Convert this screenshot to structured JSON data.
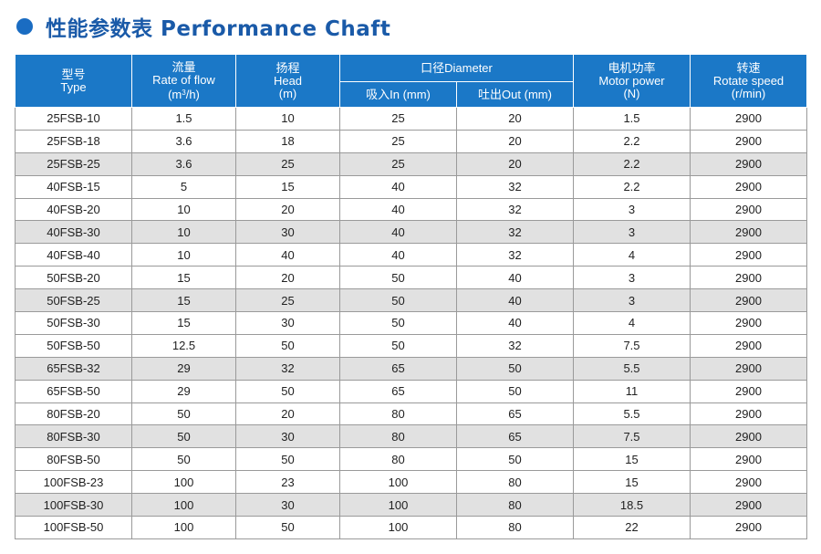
{
  "header": {
    "title": "性能参数表 Performance Chaft",
    "bullet_color": "#1a6cc2",
    "title_color": "#1a5aa8"
  },
  "table": {
    "header_color": "#1b78c7",
    "shade_color": "#e1e1e1",
    "columns": {
      "type": {
        "cn": "型号",
        "en": "Type"
      },
      "flow": {
        "cn": "流量",
        "en": "Rate of flow",
        "unit_pre": "(m",
        "unit_sup": "3",
        "unit_post": "/h)"
      },
      "head": {
        "cn": "扬程",
        "en": "Head",
        "unit": "(m)"
      },
      "diameter": {
        "label": "口径Diameter",
        "in": "吸入In (mm)",
        "out": "吐出Out (mm)"
      },
      "power": {
        "cn": "电机功率",
        "en": "Motor power",
        "unit": "(N)"
      },
      "speed": {
        "cn": "转速",
        "en": "Rotate speed",
        "unit": "(r/min)"
      }
    },
    "rows": [
      [
        "25FSB-10",
        "1.5",
        "10",
        "25",
        "20",
        "1.5",
        "2900"
      ],
      [
        "25FSB-18",
        "3.6",
        "18",
        "25",
        "20",
        "2.2",
        "2900"
      ],
      [
        "25FSB-25",
        "3.6",
        "25",
        "25",
        "20",
        "2.2",
        "2900"
      ],
      [
        "40FSB-15",
        "5",
        "15",
        "40",
        "32",
        "2.2",
        "2900"
      ],
      [
        "40FSB-20",
        "10",
        "20",
        "40",
        "32",
        "3",
        "2900"
      ],
      [
        "40FSB-30",
        "10",
        "30",
        "40",
        "32",
        "3",
        "2900"
      ],
      [
        "40FSB-40",
        "10",
        "40",
        "40",
        "32",
        "4",
        "2900"
      ],
      [
        "50FSB-20",
        "15",
        "20",
        "50",
        "40",
        "3",
        "2900"
      ],
      [
        "50FSB-25",
        "15",
        "25",
        "50",
        "40",
        "3",
        "2900"
      ],
      [
        "50FSB-30",
        "15",
        "30",
        "50",
        "40",
        "4",
        "2900"
      ],
      [
        "50FSB-50",
        "12.5",
        "50",
        "50",
        "32",
        "7.5",
        "2900"
      ],
      [
        "65FSB-32",
        "29",
        "32",
        "65",
        "50",
        "5.5",
        "2900"
      ],
      [
        "65FSB-50",
        "29",
        "50",
        "65",
        "50",
        "11",
        "2900"
      ],
      [
        "80FSB-20",
        "50",
        "20",
        "80",
        "65",
        "5.5",
        "2900"
      ],
      [
        "80FSB-30",
        "50",
        "30",
        "80",
        "65",
        "7.5",
        "2900"
      ],
      [
        "80FSB-50",
        "50",
        "50",
        "80",
        "50",
        "15",
        "2900"
      ],
      [
        "100FSB-23",
        "100",
        "23",
        "100",
        "80",
        "15",
        "2900"
      ],
      [
        "100FSB-30",
        "100",
        "30",
        "100",
        "80",
        "18.5",
        "2900"
      ],
      [
        "100FSB-50",
        "100",
        "50",
        "100",
        "80",
        "22",
        "2900"
      ]
    ]
  }
}
